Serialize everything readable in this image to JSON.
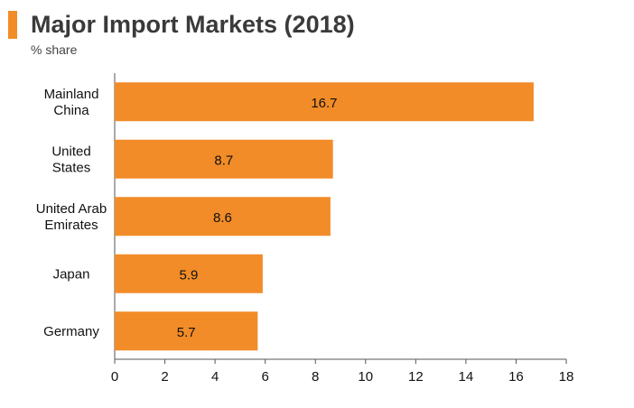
{
  "header": {
    "title": "Major Import Markets (2018)",
    "subtitle": "% share"
  },
  "colors": {
    "accent": "#f28c28",
    "bar": "#f28c28",
    "axis": "#555555"
  },
  "chart_data": {
    "type": "bar",
    "orientation": "horizontal",
    "title": "Major Import Markets (2018)",
    "subtitle": "% share",
    "categories": [
      [
        "Mainland",
        "China"
      ],
      [
        "United",
        "States"
      ],
      [
        "United Arab",
        "Emirates"
      ],
      [
        "Japan"
      ],
      [
        "Germany"
      ]
    ],
    "values": [
      16.7,
      8.7,
      8.6,
      5.9,
      5.7
    ],
    "value_labels": [
      "16.7",
      "8.7",
      "8.6",
      "5.9",
      "5.7"
    ],
    "xlim": [
      0,
      18
    ],
    "x_ticks": [
      0,
      2,
      4,
      6,
      8,
      10,
      12,
      14,
      16,
      18
    ],
    "grid": false,
    "legend": "none"
  }
}
